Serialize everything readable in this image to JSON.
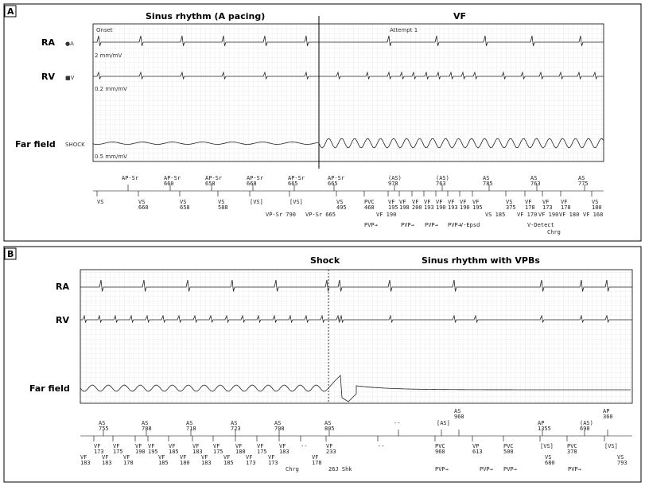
{
  "panelA": {
    "tag": "A",
    "title_left": "Sinus rhythm (A pacing)",
    "title_right": "VF",
    "channels": {
      "ra": {
        "label": "RA",
        "marker": "●A",
        "scale": "2 mm/mV"
      },
      "rv": {
        "label": "RV",
        "marker": "■V",
        "scale": "0.2 mm/mV"
      },
      "ff": {
        "label": "Far field",
        "marker": "SHOCK",
        "scale": "0.5 mm/mV"
      }
    },
    "onset": "Onset",
    "attempt": "Attempt 1",
    "atrial_markers": [
      {
        "name": "AP-Sr",
        "val": ""
      },
      {
        "name": "AP-Sr",
        "val": "660"
      },
      {
        "name": "AP-Sr",
        "val": "658"
      },
      {
        "name": "AP-Sr",
        "val": "668"
      },
      {
        "name": "AP-Sr",
        "val": "665"
      },
      {
        "name": "AP-Sr",
        "val": "665"
      },
      {
        "name": "(AS)",
        "val": "978"
      },
      {
        "name": "(AS)",
        "val": "763"
      },
      {
        "name": "AS",
        "val": "785"
      },
      {
        "name": "AS",
        "val": "763"
      },
      {
        "name": "AS",
        "val": "775"
      }
    ],
    "ventricular_markers": [
      {
        "name": "VS",
        "val": ""
      },
      {
        "name": "VS",
        "val": "660"
      },
      {
        "name": "VS",
        "val": "658"
      },
      {
        "name": "VS",
        "val": "588"
      },
      {
        "name": "[VS]",
        "val": ""
      },
      {
        "name": "[VS]",
        "val": ""
      },
      {
        "name": "VS",
        "val": "495"
      },
      {
        "name": "PVC",
        "val": "468"
      },
      {
        "name": "VF",
        "val": "195"
      },
      {
        "name": "VF",
        "val": "198"
      },
      {
        "name": "VF",
        "val": "200"
      },
      {
        "name": "VF",
        "val": "193"
      },
      {
        "name": "VF",
        "val": "190"
      },
      {
        "name": "VF",
        "val": "193"
      },
      {
        "name": "VF",
        "val": "190"
      },
      {
        "name": "VF",
        "val": "195"
      },
      {
        "name": "VS",
        "val": "375"
      },
      {
        "name": "VF",
        "val": "178"
      },
      {
        "name": "VF",
        "val": "173"
      },
      {
        "name": "VF",
        "val": "178"
      },
      {
        "name": "VS",
        "val": "180"
      }
    ],
    "lower_row": [
      "VP-Sr 790",
      "VP-Sr 665",
      "VF 190",
      "VS 185",
      "VF 170",
      "VF 190",
      "VF 180",
      "VF 168"
    ],
    "bottom_row": [
      "PVP→",
      "PVP→",
      "PVP→",
      "PVP→",
      "V-Epsd",
      "V-Detect",
      "Chrg"
    ]
  },
  "panelB": {
    "tag": "B",
    "title_shock": "Shock",
    "title_right": "Sinus rhythm with VPBs",
    "channels": {
      "ra": {
        "label": "RA"
      },
      "rv": {
        "label": "RV"
      },
      "ff": {
        "label": "Far field"
      }
    },
    "atrial_markers": [
      "AS 755",
      "AS 708",
      "AS 718",
      "AS 723",
      "AS 708",
      "AS 805",
      "--",
      "[AS]",
      "AS 960",
      "AP 1355",
      "(AS) 698",
      "AP 360"
    ],
    "ventricular_markers": [
      "VF 173",
      "VF 175",
      "VF 190",
      "VF 195",
      "VF 185",
      "VF 183",
      "VF 175",
      "VF 188",
      "VF 175",
      "VF 183",
      "--",
      "VF 233",
      "--",
      "PVC 960",
      "VP 613",
      "PVC 500",
      "[VS]",
      "PVC 378",
      "[VS]"
    ],
    "lower_row": [
      "VF 183",
      "VF 183",
      "VF 178",
      "VF 185",
      "VF 180",
      "VF 183",
      "VF 185",
      "VF 173",
      "VF 173",
      "VF 178",
      "VS 680",
      "VS 793"
    ],
    "bottom_row": [
      "Chrg",
      "26J Shk",
      "PVP→",
      "PVP→",
      "PVP→",
      "PVP→"
    ]
  }
}
